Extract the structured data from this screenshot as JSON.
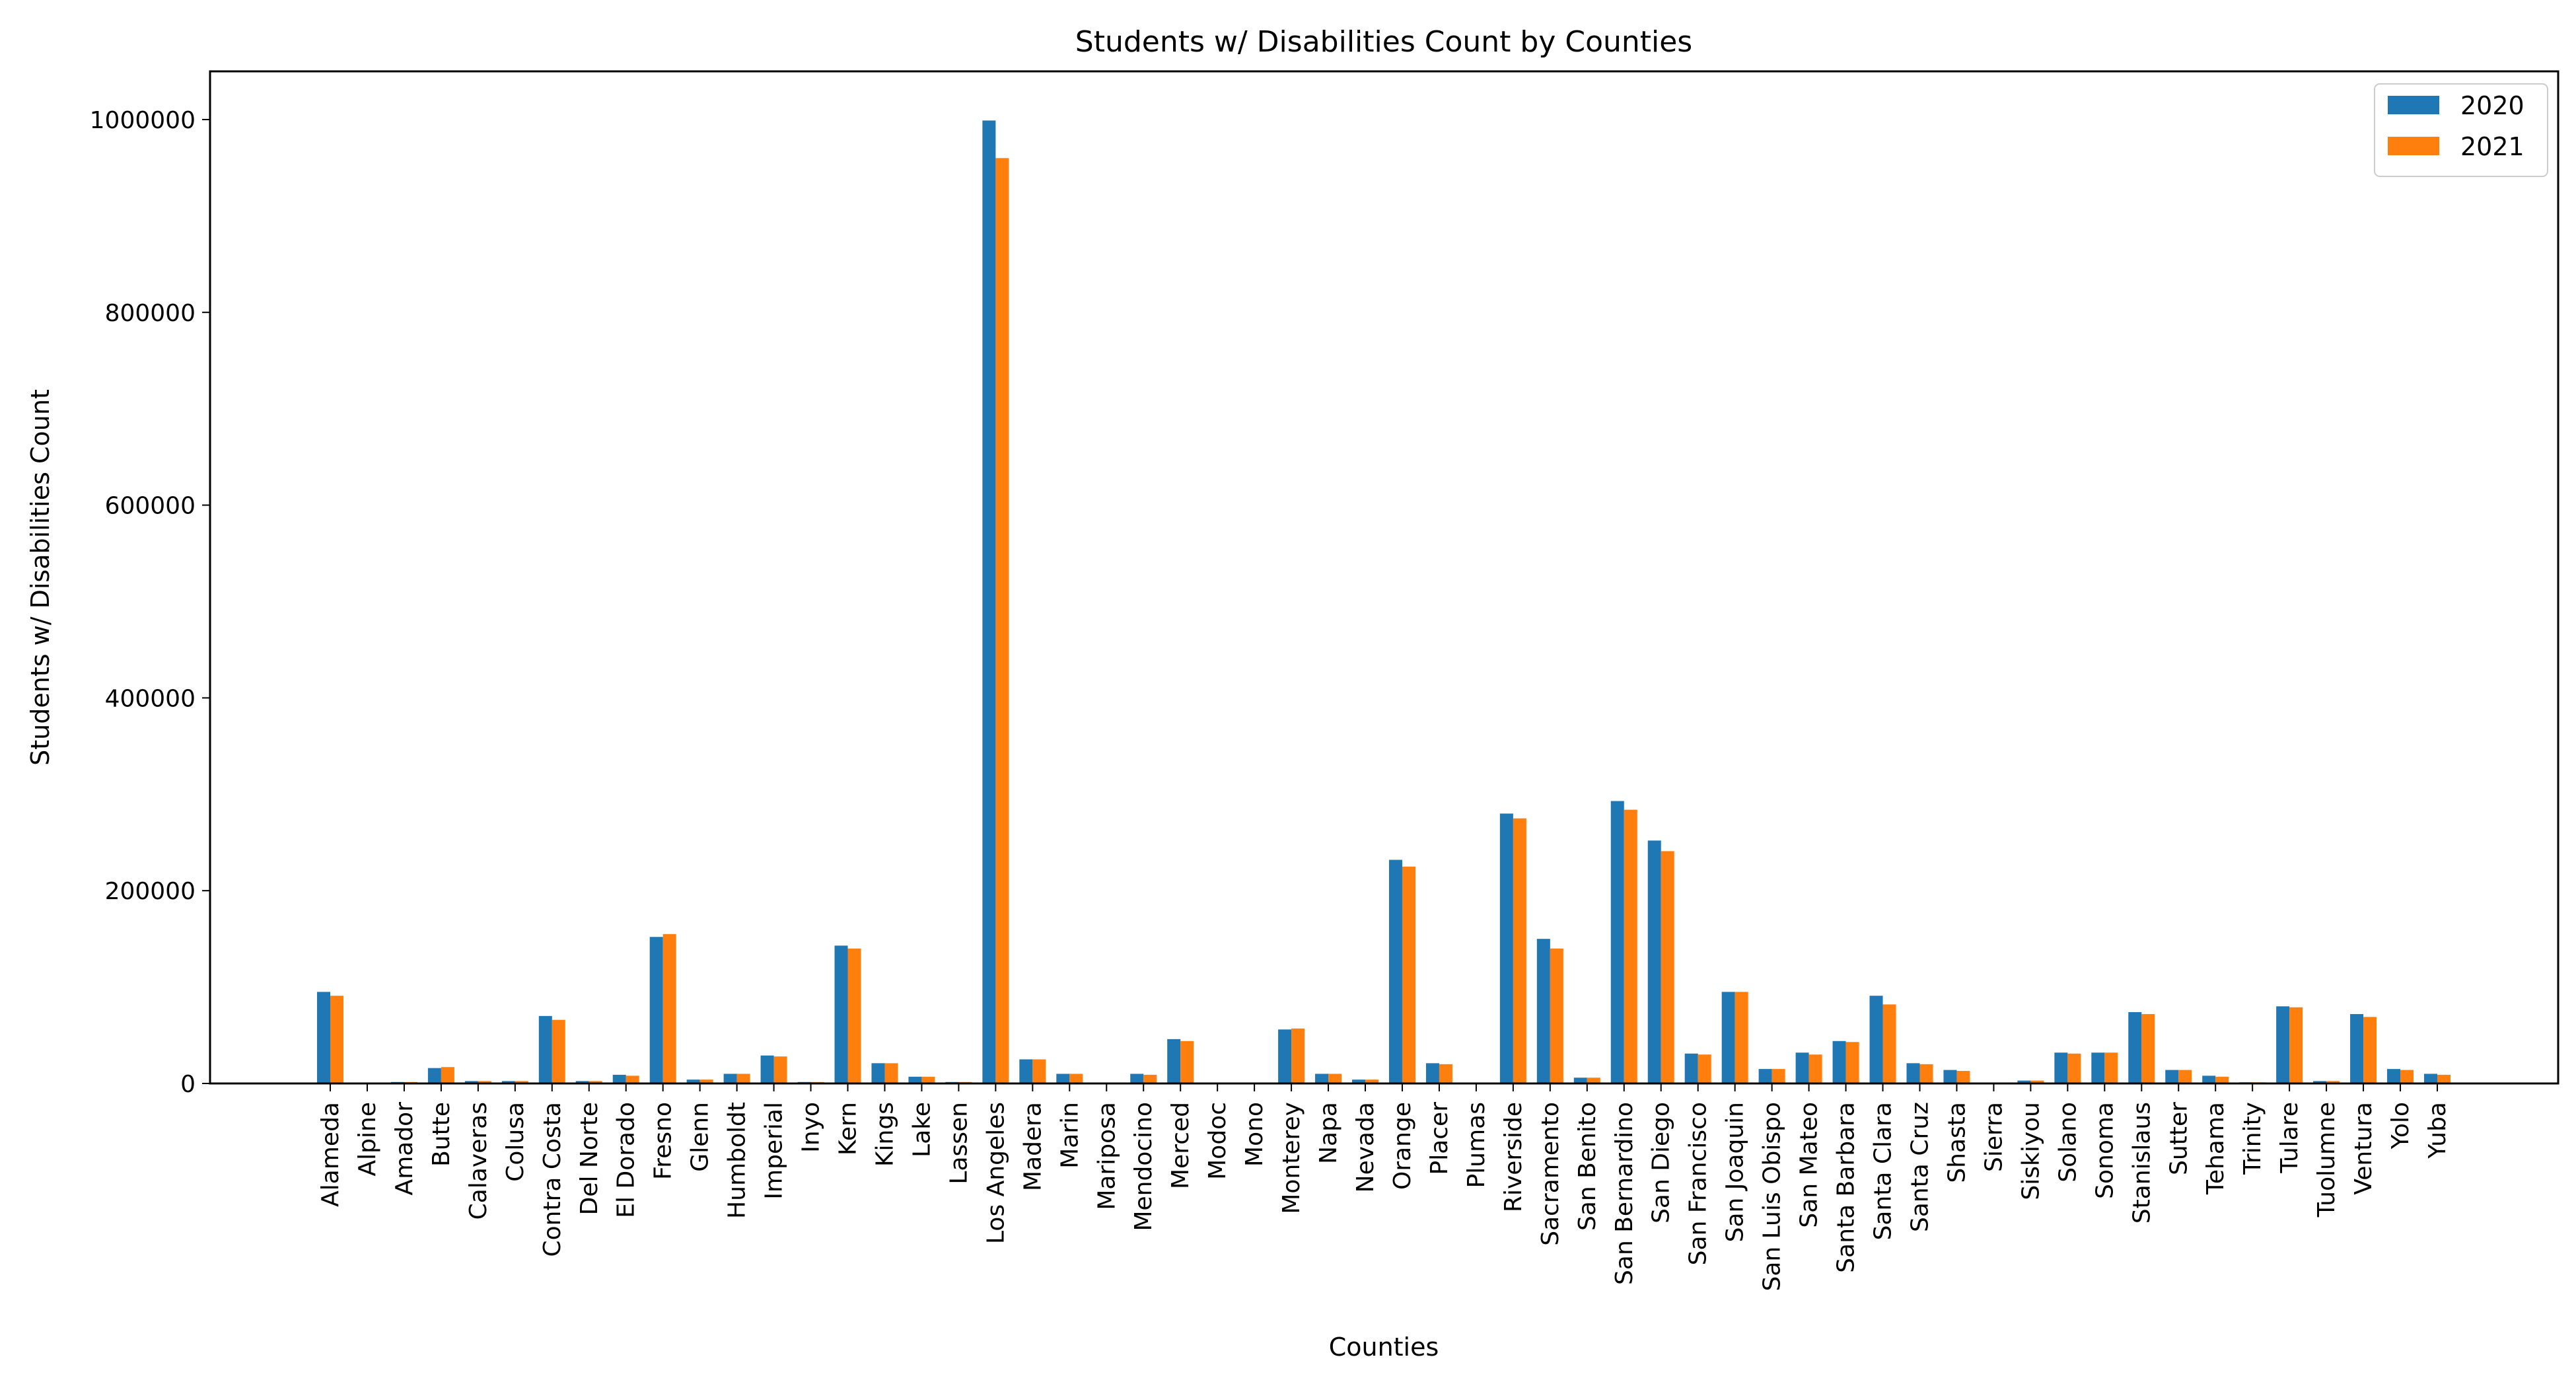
{
  "chart_data": {
    "type": "bar",
    "title": "Students w/ Disabilities Count by Counties",
    "xlabel": "Counties",
    "ylabel": "Students w/ Disabilities Count",
    "ylim": [
      0,
      1050000
    ],
    "yticks": [
      "0",
      "200000",
      "400000",
      "600000",
      "800000",
      "1000000"
    ],
    "ytick_values": [
      0,
      200000,
      400000,
      600000,
      800000,
      1000000
    ],
    "grid": false,
    "legend_position": "top-right",
    "categories": [
      "Alameda",
      "Alpine",
      "Amador",
      "Butte",
      "Calaveras",
      "Colusa",
      "Contra Costa",
      "Del Norte",
      "El Dorado",
      "Fresno",
      "Glenn",
      "Humboldt",
      "Imperial",
      "Inyo",
      "Kern",
      "Kings",
      "Lake",
      "Lassen",
      "Los Angeles",
      "Madera",
      "Marin",
      "Mariposa",
      "Mendocino",
      "Merced",
      "Modoc",
      "Mono",
      "Monterey",
      "Napa",
      "Nevada",
      "Orange",
      "Placer",
      "Plumas",
      "Riverside",
      "Sacramento",
      "San Benito",
      "San Bernardino",
      "San Diego",
      "San Francisco",
      "San Joaquin",
      "San Luis Obispo",
      "San Mateo",
      "Santa Barbara",
      "Santa Clara",
      "Santa Cruz",
      "Shasta",
      "Sierra",
      "Siskiyou",
      "Solano",
      "Sonoma",
      "Stanislaus",
      "Sutter",
      "Tehama",
      "Trinity",
      "Tulare",
      "Tuolumne",
      "Ventura",
      "Yolo",
      "Yuba"
    ],
    "series": [
      {
        "name": "2020",
        "color": "#1f77b4",
        "values": [
          95000,
          200,
          1500,
          16000,
          2500,
          2500,
          70000,
          2500,
          9000,
          152000,
          4000,
          10000,
          29000,
          1500,
          143000,
          21000,
          7000,
          1500,
          999000,
          25000,
          10000,
          1000,
          10000,
          46000,
          600,
          700,
          56000,
          10000,
          4000,
          232000,
          21000,
          1000,
          280000,
          150000,
          6000,
          293000,
          252000,
          31000,
          95000,
          15000,
          32000,
          44000,
          91000,
          21000,
          14000,
          300,
          3000,
          32000,
          32000,
          74000,
          14000,
          8000,
          1200,
          80000,
          2500,
          72000,
          15000,
          10000
        ]
      },
      {
        "name": "2021",
        "color": "#ff7f0e",
        "values": [
          91000,
          200,
          1500,
          17000,
          2500,
          2500,
          66000,
          2500,
          8000,
          155000,
          4000,
          10000,
          28000,
          1500,
          140000,
          21000,
          7000,
          1500,
          960000,
          25000,
          10000,
          1000,
          9000,
          44000,
          600,
          700,
          57000,
          10000,
          4000,
          225000,
          20000,
          1000,
          275000,
          140000,
          6000,
          284000,
          241000,
          30000,
          95000,
          15000,
          30000,
          43000,
          82000,
          20000,
          13000,
          300,
          3000,
          31000,
          32000,
          72000,
          14000,
          7000,
          1200,
          79000,
          2500,
          69000,
          14000,
          9000
        ]
      }
    ]
  }
}
